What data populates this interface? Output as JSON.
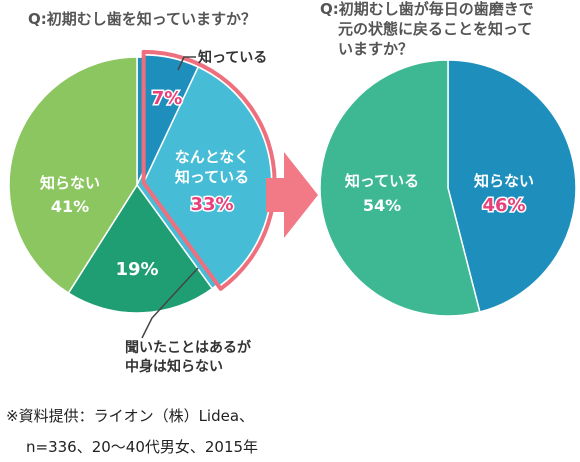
{
  "chart_data": [
    {
      "type": "pie",
      "title": "Q:初期むし歯を知っていますか？",
      "slices": [
        {
          "label": "知っている",
          "value": 7,
          "value_label": "7%",
          "color": "#1e8fbd",
          "highlight": true
        },
        {
          "label": "なんとなく\n知っている",
          "value": 33,
          "value_label": "33%",
          "color": "#46bcd6",
          "highlight": true
        },
        {
          "label": "聞いたことはあるが\n中身は知らない",
          "value": 19,
          "value_label": "19%",
          "color": "#1f9e73"
        },
        {
          "label": "知らない",
          "value": 41,
          "value_label": "41%",
          "color": "#8cc660"
        }
      ],
      "highlight_color": "#ee6f7d",
      "highlight_value_color": "#e8407a"
    },
    {
      "type": "pie",
      "title": "Q:初期むし歯が毎日の歯磨きで\n元の状態に戻ることを知って\nいますか？",
      "slices": [
        {
          "label": "知らない",
          "value": 46,
          "value_label": "46%",
          "color": "#1e8fbd",
          "value_color": "#e8407a"
        },
        {
          "label": "知っている",
          "value": 54,
          "value_label": "54%",
          "color": "#3db893"
        }
      ]
    }
  ],
  "arrow_color": "#f27a86",
  "source_note": {
    "line1": "※資料提供：ライオン（株）Lidea、",
    "line2": "n=336、20〜40代男女、2015年"
  }
}
